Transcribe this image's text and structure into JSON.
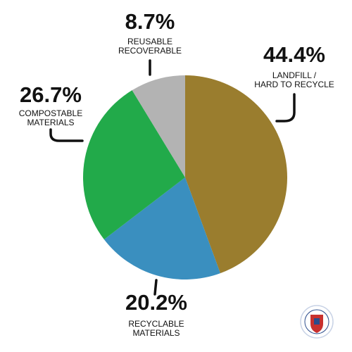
{
  "chart_data": {
    "type": "pie",
    "categories": [
      [
        "LANDFILL /",
        "HARD TO RECYCLE"
      ],
      [
        "RECYCLABLE",
        "MATERIALS"
      ],
      [
        "COMPOSTABLE",
        "MATERIALS"
      ],
      [
        "REUSABLE",
        "RECOVERABLE"
      ]
    ],
    "values": [
      44.4,
      20.2,
      26.7,
      8.7
    ],
    "value_labels": [
      "44.4%",
      "20.2%",
      "26.7%",
      "8.7%"
    ],
    "colors": [
      "#9a7d2e",
      "#3a8fbf",
      "#22aa4a",
      "#b3b3b3"
    ]
  }
}
